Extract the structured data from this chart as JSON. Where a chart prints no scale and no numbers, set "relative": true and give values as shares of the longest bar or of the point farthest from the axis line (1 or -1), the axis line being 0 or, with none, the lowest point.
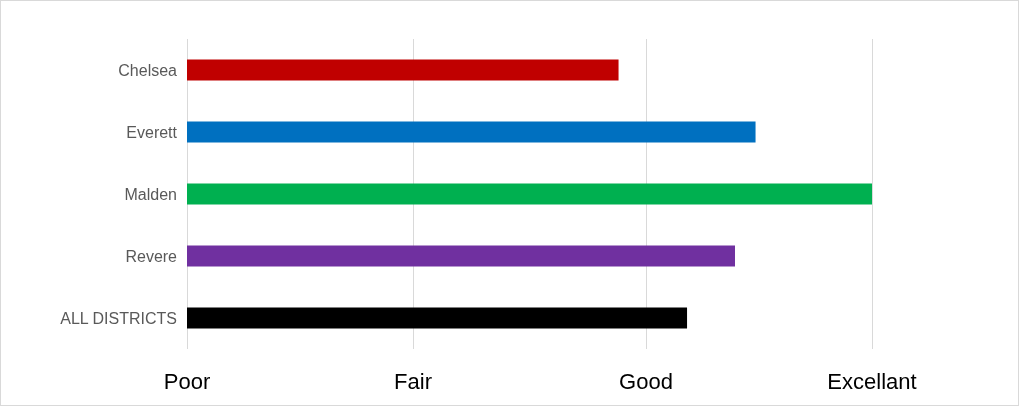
{
  "chart_data": {
    "type": "bar",
    "orientation": "horizontal",
    "relative": true,
    "categories": [
      "Chelsea",
      "Everett",
      "Malden",
      "Revere",
      "ALL DISTRICTS"
    ],
    "values": [
      0.63,
      0.83,
      1,
      0.8,
      0.73
    ],
    "colors": [
      "#c00000",
      "#0070c0",
      "#00b050",
      "#7030a0",
      "#000000"
    ],
    "ref_lines": [
      {
        "axis": "x",
        "value": 0,
        "label": "Poor",
        "color": "#d9d9d9"
      },
      {
        "axis": "x",
        "value": 0.33,
        "label": "Fair",
        "color": "#d9d9d9"
      },
      {
        "axis": "x",
        "value": 0.67,
        "label": "Good",
        "color": "#d9d9d9"
      },
      {
        "axis": "x",
        "value": 1,
        "label": "Excellant",
        "color": "#d9d9d9"
      }
    ]
  }
}
